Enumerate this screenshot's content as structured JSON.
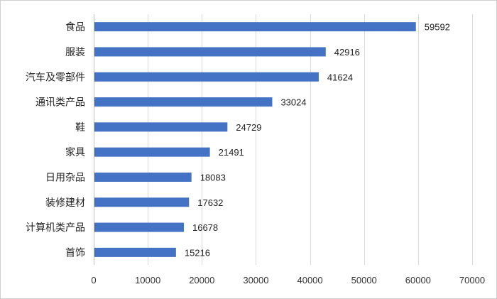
{
  "chart_data": {
    "type": "bar",
    "orientation": "horizontal",
    "title": "",
    "xlabel": "",
    "ylabel": "",
    "categories": [
      "食品",
      "服装",
      "汽车及零部件",
      "通讯类产品",
      "鞋",
      "家具",
      "日用杂品",
      "装修建材",
      "计算机类产品",
      "首饰"
    ],
    "values": [
      59592,
      42916,
      41624,
      33024,
      24729,
      21491,
      18083,
      17632,
      16678,
      15216
    ],
    "xlim": [
      0,
      70000
    ],
    "xticks": [
      0,
      10000,
      20000,
      30000,
      40000,
      50000,
      60000,
      70000
    ],
    "grid": "vertical",
    "legend": "none",
    "data_labels": true,
    "bar_color": "#4472C4"
  }
}
